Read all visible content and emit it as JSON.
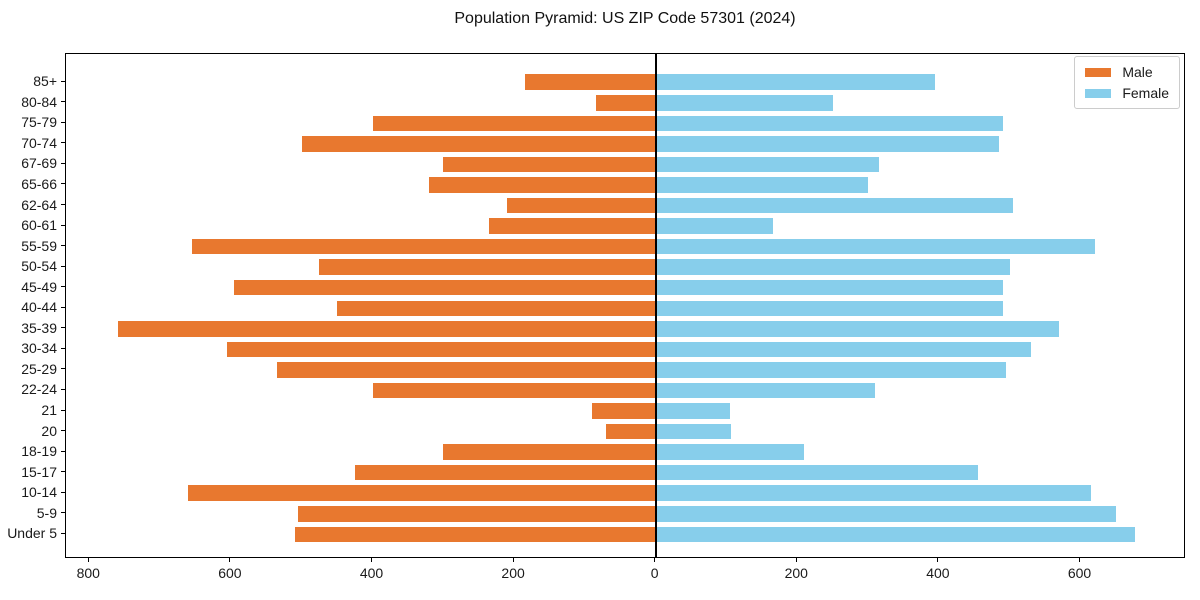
{
  "title": "Population Pyramid: US ZIP Code 57301 (2024)",
  "legend": {
    "male": "Male",
    "female": "Female"
  },
  "colors": {
    "male": "#e8782f",
    "female": "#87ceeb",
    "axis": "#000000",
    "legend_border": "#cccccc"
  },
  "chart_data": {
    "type": "bar",
    "subtype": "population-pyramid",
    "title": "Population Pyramid: US ZIP Code 57301 (2024)",
    "xlabel": "",
    "ylabel": "",
    "grid": false,
    "legend_position": "upper right",
    "xlim": [
      -832,
      749
    ],
    "categories": [
      "85+",
      "80-84",
      "75-79",
      "70-74",
      "67-69",
      "65-66",
      "62-64",
      "60-61",
      "55-59",
      "50-54",
      "45-49",
      "40-44",
      "35-39",
      "30-34",
      "25-29",
      "22-24",
      "21",
      "20",
      "18-19",
      "15-17",
      "10-14",
      "5-9",
      "Under 5"
    ],
    "series": [
      {
        "name": "Male",
        "side": "left",
        "color": "#e8782f",
        "values": [
          185,
          85,
          400,
          500,
          300,
          320,
          210,
          235,
          655,
          475,
          595,
          450,
          760,
          605,
          535,
          400,
          90,
          70,
          300,
          425,
          660,
          505,
          510
        ]
      },
      {
        "name": "Female",
        "side": "right",
        "color": "#87ceeb",
        "values": [
          395,
          250,
          490,
          485,
          315,
          300,
          505,
          165,
          620,
          500,
          490,
          490,
          570,
          530,
          495,
          310,
          105,
          107,
          210,
          455,
          615,
          650,
          677
        ]
      }
    ],
    "x_ticks": [
      {
        "v": -800,
        "label": "800"
      },
      {
        "v": -600,
        "label": "600"
      },
      {
        "v": -400,
        "label": "400"
      },
      {
        "v": -200,
        "label": "200"
      },
      {
        "v": 0,
        "label": "0"
      },
      {
        "v": 200,
        "label": "200"
      },
      {
        "v": 400,
        "label": "400"
      },
      {
        "v": 600,
        "label": "600"
      }
    ]
  }
}
